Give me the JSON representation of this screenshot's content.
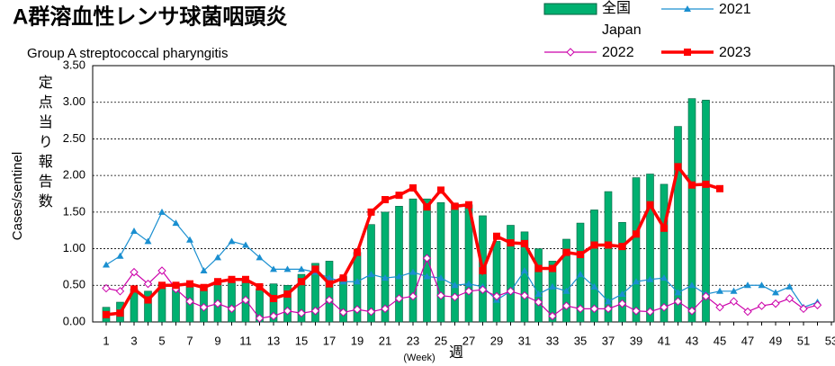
{
  "chart_data": {
    "type": "bar_line",
    "title": "A群溶血性レンサ球菌咽頭炎",
    "subtitle": "Group A streptococcal pharyngitis",
    "y_label": "Cases/sentinel",
    "y_label_ja": "定点当り報告数",
    "x_label_ja": "週",
    "x_label": "(Week)",
    "categories": [
      "1",
      null,
      "3",
      null,
      "5",
      null,
      "7",
      null,
      "9",
      null,
      "11",
      null,
      "13",
      null,
      "15",
      null,
      "17",
      null,
      "19",
      null,
      "21",
      null,
      "23",
      null,
      "25",
      null,
      "27",
      null,
      "29",
      null,
      "31",
      null,
      "33",
      null,
      "35",
      null,
      "37",
      null,
      "39",
      null,
      "41",
      null,
      "43",
      null,
      "45",
      null,
      "47",
      null,
      "49",
      null,
      "51",
      null,
      "53"
    ],
    "ylim": [
      0,
      3.5
    ],
    "yticks": [
      {
        "value": 0,
        "label": "0.00"
      },
      {
        "value": 0.5,
        "label": "0.50"
      },
      {
        "value": 1,
        "label": "1.00"
      },
      {
        "value": 1.5,
        "label": "1.50"
      },
      {
        "value": 2,
        "label": "2.00"
      },
      {
        "value": 2.5,
        "label": "2.50"
      },
      {
        "value": 3,
        "label": "3.00"
      },
      {
        "value": 3.5,
        "label": "3.50"
      }
    ],
    "grid": true,
    "series": [
      {
        "name": "全国\nJapan",
        "kind": "bar",
        "color": "#00b070",
        "values": [
          0.2,
          0.27,
          0.45,
          0.42,
          0.52,
          0.5,
          0.52,
          0.5,
          0.55,
          0.55,
          0.57,
          0.45,
          0.52,
          0.5,
          0.65,
          0.8,
          0.83,
          0.62,
          0.95,
          1.33,
          1.5,
          1.58,
          1.68,
          1.68,
          1.63,
          1.62,
          1.6,
          1.45,
          1.1,
          1.32,
          1.23,
          1.0,
          0.83,
          1.13,
          1.35,
          1.53,
          1.78,
          1.36,
          1.97,
          2.02,
          1.88,
          2.67,
          3.05,
          3.03,
          null,
          null,
          null,
          null,
          null,
          null,
          null,
          null,
          null
        ]
      },
      {
        "name": "2021",
        "kind": "line",
        "marker": "triangle",
        "color": "#1a8fd0",
        "values": [
          0.78,
          0.9,
          1.24,
          1.1,
          1.5,
          1.35,
          1.12,
          0.7,
          0.88,
          1.1,
          1.05,
          0.88,
          0.72,
          0.72,
          0.72,
          0.68,
          0.6,
          0.55,
          0.55,
          0.65,
          0.6,
          0.62,
          0.68,
          0.62,
          0.6,
          0.5,
          0.52,
          0.48,
          0.3,
          0.42,
          0.7,
          0.38,
          0.48,
          0.42,
          0.65,
          0.48,
          0.28,
          0.38,
          0.55,
          0.58,
          0.6,
          0.4,
          0.5,
          0.38,
          0.42,
          0.42,
          0.5,
          0.5,
          0.4,
          0.48,
          0.2,
          0.27,
          null
        ]
      },
      {
        "name": "2022",
        "kind": "line",
        "marker": "diamond",
        "color": "#cc00aa",
        "values": [
          0.46,
          0.42,
          0.68,
          0.52,
          0.7,
          0.45,
          0.28,
          0.2,
          0.25,
          0.18,
          0.3,
          0.05,
          0.08,
          0.15,
          0.12,
          0.15,
          0.3,
          0.13,
          0.17,
          0.14,
          0.18,
          0.32,
          0.35,
          0.87,
          0.36,
          0.34,
          0.42,
          0.44,
          0.35,
          0.42,
          0.36,
          0.27,
          0.08,
          0.22,
          0.18,
          0.18,
          0.18,
          0.25,
          0.15,
          0.14,
          0.2,
          0.28,
          0.15,
          0.35,
          0.2,
          0.28,
          0.14,
          0.22,
          0.25,
          0.32,
          0.18,
          0.23,
          null
        ]
      },
      {
        "name": "2023",
        "kind": "line",
        "marker": "square",
        "color": "#ff0000",
        "values": [
          0.1,
          0.12,
          0.45,
          0.3,
          0.5,
          0.5,
          0.52,
          0.47,
          0.55,
          0.58,
          0.58,
          0.48,
          0.32,
          0.38,
          0.55,
          0.72,
          0.52,
          0.6,
          0.95,
          1.5,
          1.67,
          1.73,
          1.83,
          1.57,
          1.8,
          1.58,
          1.6,
          0.7,
          1.17,
          1.08,
          1.07,
          0.73,
          0.73,
          0.95,
          0.92,
          1.05,
          1.05,
          1.03,
          1.2,
          1.6,
          1.28,
          2.12,
          1.87,
          1.88,
          1.82,
          null,
          null,
          null,
          null,
          null,
          null,
          null,
          null
        ]
      }
    ]
  }
}
